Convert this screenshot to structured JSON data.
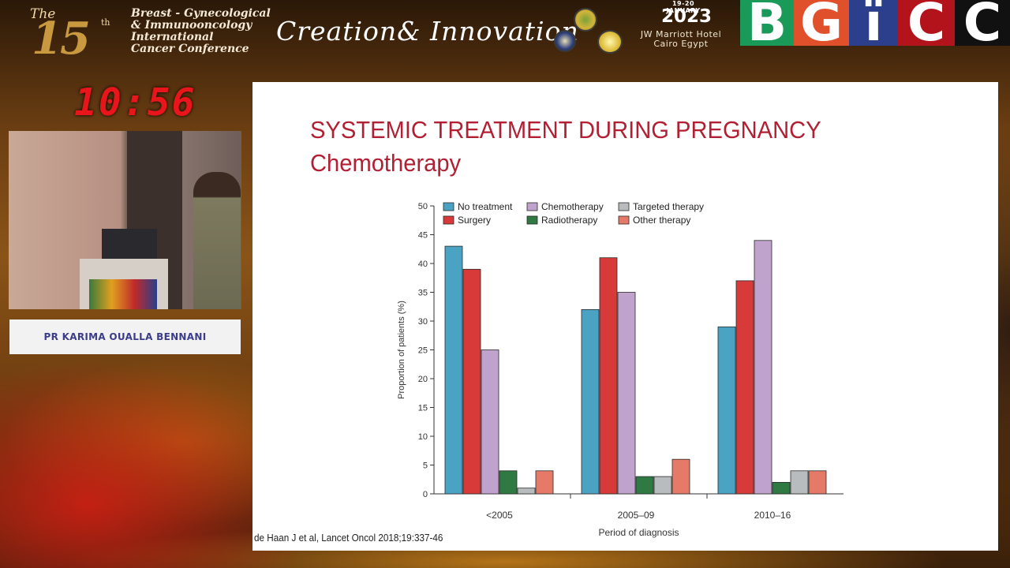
{
  "banner": {
    "edition_the": "The",
    "edition_number": "15",
    "edition_suffix": "th",
    "conference_lines": [
      "Breast - Gynecological",
      "& Immunooncology",
      "International",
      "Cancer Conference"
    ],
    "tagline": "Creation& Innovation",
    "dates": "19-20 JANUARY",
    "year": "2023",
    "venue_line1": "JW Marriott Hotel",
    "venue_line2": "Cairo Egypt",
    "brand_letters": [
      {
        "letter": "B",
        "color": "#1a9a58"
      },
      {
        "letter": "G",
        "color": "#e0502a"
      },
      {
        "letter": "ï",
        "color": "#2b3f8c"
      },
      {
        "letter": "C",
        "color": "#b3141c"
      },
      {
        "letter": "C",
        "color": "#111111"
      }
    ]
  },
  "clock": "10:56",
  "speaker": {
    "name": "PR KARIMA OUALLA BENNANI"
  },
  "slide": {
    "title": "SYSTEMIC TREATMENT DURING PREGNANCY",
    "subtitle": "Chemotherapy",
    "citation": "de Haan J et al, Lancet Oncol 2018;19:337-46"
  },
  "chart_data": {
    "type": "bar",
    "title": "",
    "xlabel": "Period of diagnosis",
    "ylabel": "Proportion of patients (%)",
    "ylim": [
      0,
      50
    ],
    "yticks": [
      0,
      5,
      10,
      15,
      20,
      25,
      30,
      35,
      40,
      45,
      50
    ],
    "categories": [
      "<2005",
      "2005–09",
      "2010–16"
    ],
    "legend_position": "top",
    "grid": false,
    "series": [
      {
        "name": "No treatment",
        "color": "#4ba3c3",
        "values": [
          43,
          32,
          29
        ]
      },
      {
        "name": "Surgery",
        "color": "#d83a3a",
        "values": [
          39,
          41,
          37
        ]
      },
      {
        "name": "Chemotherapy",
        "color": "#c0a3cc",
        "values": [
          25,
          35,
          44
        ]
      },
      {
        "name": "Radiotherapy",
        "color": "#2f7a43",
        "values": [
          4,
          3,
          2
        ]
      },
      {
        "name": "Targeted therapy",
        "color": "#b9bcbe",
        "values": [
          1,
          3,
          4
        ]
      },
      {
        "name": "Other therapy",
        "color": "#e67a68",
        "values": [
          4,
          6,
          4
        ]
      }
    ]
  }
}
